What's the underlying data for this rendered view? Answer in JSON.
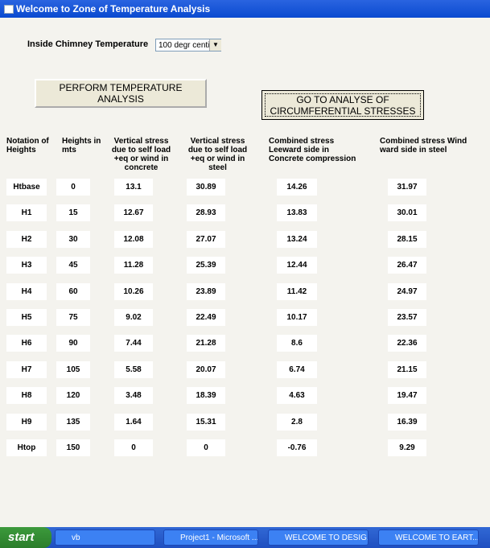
{
  "window": {
    "title": "Welcome to Zone  of Temperature Analysis"
  },
  "controls": {
    "temperature_label": "Inside Chimney Temperature",
    "temperature_select": "100 degr centi",
    "perform_button": "PERFORM TEMPERATURE ANALYSIS",
    "analyse_button": "GO TO ANALYSE OF CIRCUMFERENTIAL STRESSES"
  },
  "table": {
    "headers": [
      "Notation of Heights",
      "Heights in mts",
      "Vertical stress due to self load +eq or wind in concrete",
      "Vertical stress due to self load +eq or wind in steel",
      "Combined stress Leeward side in Concrete compression",
      "Combined stress Wind ward side in steel"
    ],
    "rows": [
      [
        "Htbase",
        "0",
        "13.1",
        "30.89",
        "14.26",
        "31.97"
      ],
      [
        "H1",
        "15",
        "12.67",
        "28.93",
        "13.83",
        "30.01"
      ],
      [
        "H2",
        "30",
        "12.08",
        "27.07",
        "13.24",
        "28.15"
      ],
      [
        "H3",
        "45",
        "11.28",
        "25.39",
        "12.44",
        "26.47"
      ],
      [
        "H4",
        "60",
        "10.26",
        "23.89",
        "11.42",
        "24.97"
      ],
      [
        "H5",
        "75",
        "9.02",
        "22.49",
        "10.17",
        "23.57"
      ],
      [
        "H6",
        "90",
        "7.44",
        "21.28",
        "8.6",
        "22.36"
      ],
      [
        "H7",
        "105",
        "5.58",
        "20.07",
        "6.74",
        "21.15"
      ],
      [
        "H8",
        "120",
        "3.48",
        "18.39",
        "4.63",
        "19.47"
      ],
      [
        "H9",
        "135",
        "1.64",
        "15.31",
        "2.8",
        "16.39"
      ],
      [
        "Htop",
        "150",
        "0",
        "0",
        "-0.76",
        "9.29"
      ]
    ]
  },
  "taskbar": {
    "start": "start",
    "items": [
      "vb",
      "Project1 - Microsoft ...",
      "WELCOME TO DESIG...",
      "WELCOME TO EART..."
    ]
  }
}
